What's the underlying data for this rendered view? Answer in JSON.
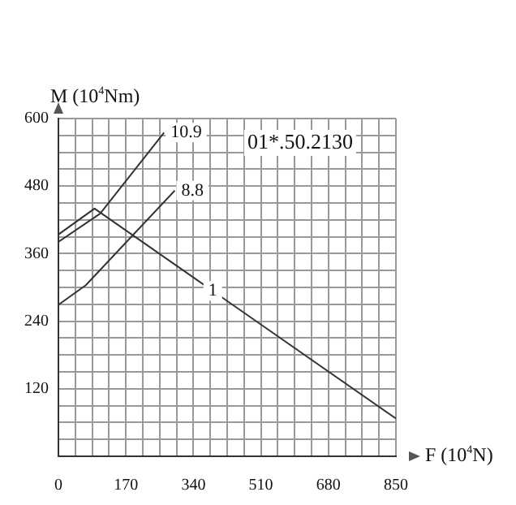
{
  "chart_data": {
    "type": "line",
    "xlabel": "F (10$^{4}$N)",
    "ylabel": "M (10$^{4}$Nm)",
    "annotations": [
      "01*.50.2130"
    ],
    "xlim": [
      0,
      850
    ],
    "ylim": [
      0,
      600
    ],
    "xticks": [
      0,
      {
        "value": 42.5,
        "label": null
      },
      {
        "value": 85,
        "label": null
      },
      {
        "value": 127.5,
        "label": null
      },
      170,
      {
        "value": 212.5,
        "label": null
      },
      {
        "value": 255,
        "label": null
      },
      {
        "value": 297.5,
        "label": null
      },
      340,
      {
        "value": 382.5,
        "label": null
      },
      {
        "value": 425,
        "label": null
      },
      {
        "value": 467.5,
        "label": null
      },
      510,
      {
        "value": 552.5,
        "label": null
      },
      {
        "value": 595,
        "label": null
      },
      {
        "value": 637.5,
        "label": null
      },
      680,
      {
        "value": 722.5,
        "label": null
      },
      {
        "value": 765,
        "label": null
      },
      {
        "value": 807.5,
        "label": null
      },
      850
    ],
    "yticks": [
      {
        "value": 0,
        "label": null
      },
      {
        "value": 30,
        "label": null
      },
      {
        "value": 60,
        "label": null
      },
      {
        "value": 90,
        "label": null
      },
      120,
      {
        "value": 150,
        "label": null
      },
      {
        "value": 180,
        "label": null
      },
      {
        "value": 210,
        "label": null
      },
      240,
      {
        "value": 270,
        "label": null
      },
      {
        "value": 300,
        "label": null
      },
      {
        "value": 330,
        "label": null
      },
      360,
      {
        "value": 390,
        "label": null
      },
      {
        "value": 420,
        "label": null
      },
      {
        "value": 450,
        "label": null
      },
      480,
      {
        "value": 510,
        "label": null
      },
      {
        "value": 540,
        "label": null
      },
      {
        "value": 570,
        "label": null
      },
      600
    ],
    "grid": true,
    "legend": false,
    "marker": "none",
    "line_style": "solid",
    "series": [
      {
        "name": "10.9",
        "color": "#333333",
        "x": [
          0,
          105,
          266
        ],
        "values": [
          381,
          431,
          575
        ]
      },
      {
        "name": "8.8",
        "color": "#333333",
        "x": [
          0,
          69,
          293
        ],
        "values": [
          269,
          304,
          472
        ]
      },
      {
        "name": "1",
        "color": "#333333",
        "x": [
          0,
          91,
          850
        ],
        "values": [
          394,
          440,
          67
        ]
      }
    ]
  }
}
